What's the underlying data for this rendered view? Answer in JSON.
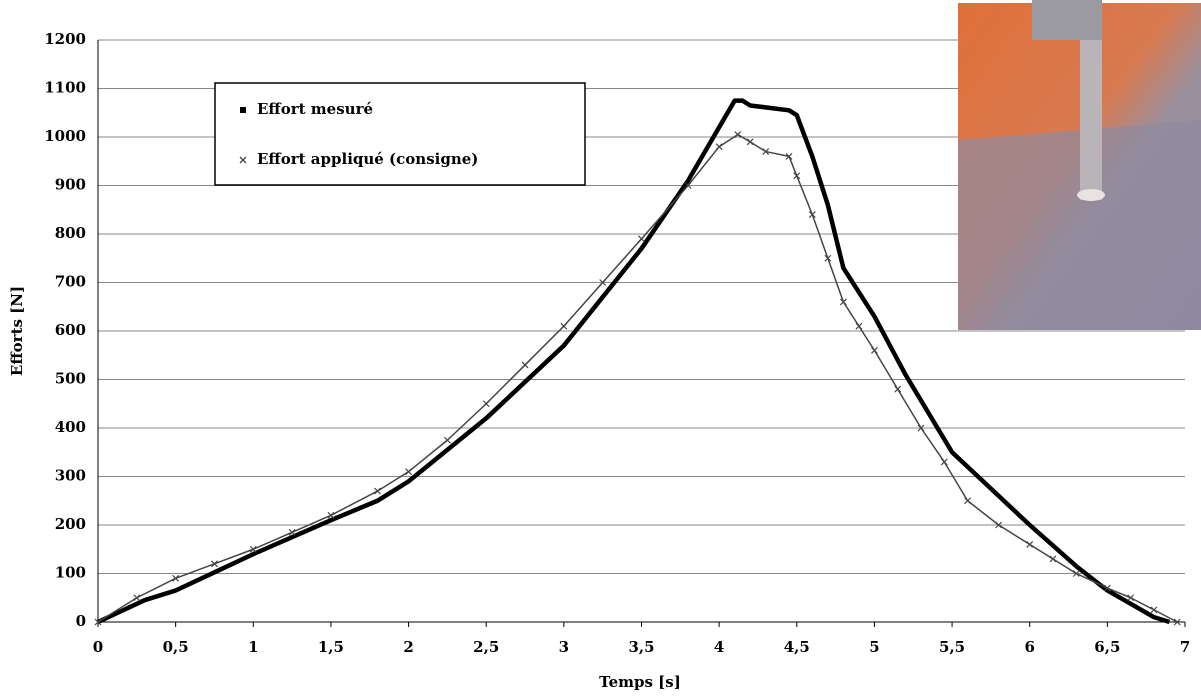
{
  "chart_data": {
    "type": "line",
    "x_label": "Temps [s]",
    "y_label": "Efforts [N]",
    "xlim": [
      0,
      7
    ],
    "ylim": [
      0,
      1200
    ],
    "xticks": [
      0,
      {
        "value": 0.5,
        "label": "0,5"
      },
      1,
      {
        "value": 1.5,
        "label": "1,5"
      },
      2,
      {
        "value": 2.5,
        "label": "2,5"
      },
      3,
      {
        "value": 3.5,
        "label": "3,5"
      },
      4,
      {
        "value": 4.5,
        "label": "4,5"
      },
      5,
      {
        "value": 5.5,
        "label": "5,5"
      },
      6,
      {
        "value": 6.5,
        "label": "6,5"
      },
      7
    ],
    "yticks": [
      0,
      100,
      200,
      300,
      400,
      500,
      600,
      700,
      800,
      900,
      1000,
      1100,
      1200
    ],
    "grid": true,
    "legend": "upper left",
    "series": [
      {
        "name": "Effort mesuré",
        "color": "#000000",
        "marker": "square",
        "x": [
          0,
          0.3,
          0.5,
          0.8,
          1,
          1.5,
          1.8,
          2,
          2.5,
          3,
          3.5,
          3.8,
          4,
          4.1,
          4.15,
          4.2,
          4.45,
          4.5,
          4.6,
          4.7,
          4.8,
          5,
          5.2,
          5.5,
          5.8,
          6,
          6.3,
          6.5,
          6.8,
          6.9
        ],
        "values": [
          0,
          45,
          65,
          110,
          140,
          210,
          250,
          290,
          420,
          570,
          770,
          910,
          1020,
          1075,
          1075,
          1065,
          1055,
          1045,
          960,
          860,
          730,
          630,
          510,
          350,
          260,
          200,
          115,
          65,
          10,
          0
        ]
      },
      {
        "name": "Effort appliqué (consigne)",
        "color": "#444444",
        "marker": "x",
        "x": [
          0,
          0.25,
          0.5,
          0.75,
          1,
          1.25,
          1.5,
          1.8,
          2,
          2.25,
          2.5,
          2.75,
          3,
          3.25,
          3.5,
          3.8,
          4,
          4.12,
          4.2,
          4.3,
          4.45,
          4.5,
          4.6,
          4.7,
          4.8,
          4.9,
          5,
          5.15,
          5.3,
          5.45,
          5.6,
          5.8,
          6,
          6.15,
          6.3,
          6.5,
          6.65,
          6.8,
          6.95
        ],
        "values": [
          0,
          50,
          90,
          120,
          150,
          185,
          220,
          270,
          310,
          375,
          450,
          530,
          610,
          700,
          790,
          900,
          980,
          1005,
          990,
          970,
          960,
          920,
          840,
          750,
          660,
          610,
          560,
          480,
          400,
          330,
          250,
          200,
          160,
          130,
          100,
          70,
          50,
          25,
          0
        ]
      }
    ]
  }
}
